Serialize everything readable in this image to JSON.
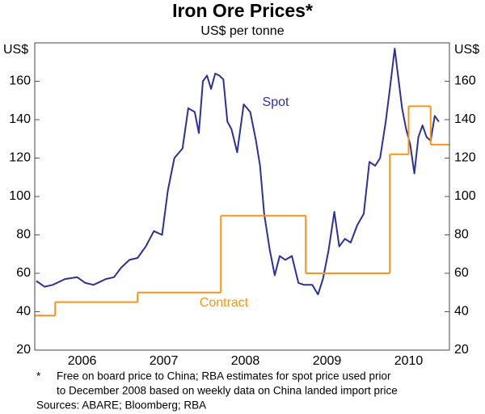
{
  "chart_data": {
    "type": "line",
    "title": "Iron Ore Prices*",
    "subtitle": "US$ per tonne",
    "y_label": "US$",
    "y2_label": "US$",
    "xlim": [
      2005.92,
      2011.0
    ],
    "xticks": [
      {
        "value": 2006.5,
        "label": "2006"
      },
      {
        "value": 2007.5,
        "label": "2007"
      },
      {
        "value": 2008.5,
        "label": "2008"
      },
      {
        "value": 2009.5,
        "label": "2009"
      },
      {
        "value": 2010.5,
        "label": "2010"
      }
    ],
    "ylim": [
      20,
      180
    ],
    "yticks": [
      20,
      40,
      60,
      80,
      100,
      120,
      140,
      160
    ],
    "y2lim": [
      20,
      180
    ],
    "y2ticks": [
      20,
      40,
      60,
      80,
      100,
      120,
      140,
      160
    ],
    "series": [
      {
        "name": "Spot",
        "color": "#2e3192",
        "x": [
          2005.94,
          2006.04,
          2006.14,
          2006.29,
          2006.44,
          2006.54,
          2006.64,
          2006.79,
          2006.89,
          2006.98,
          2007.08,
          2007.18,
          2007.28,
          2007.38,
          2007.48,
          2007.55,
          2007.63,
          2007.73,
          2007.8,
          2007.88,
          2007.93,
          2007.98,
          2008.03,
          2008.08,
          2008.13,
          2008.18,
          2008.23,
          2008.28,
          2008.33,
          2008.4,
          2008.48,
          2008.56,
          2008.63,
          2008.68,
          2008.73,
          2008.8,
          2008.86,
          2008.92,
          2008.99,
          2009.07,
          2009.15,
          2009.22,
          2009.32,
          2009.39,
          2009.45,
          2009.52,
          2009.59,
          2009.65,
          2009.72,
          2009.79,
          2009.87,
          2009.95,
          2010.02,
          2010.09,
          2010.15,
          2010.22,
          2010.27,
          2010.33,
          2010.37,
          2010.42,
          2010.47,
          2010.52,
          2010.57,
          2010.62,
          2010.67,
          2010.72,
          2010.77,
          2010.82,
          2010.87
        ],
        "values": [
          56,
          53,
          54,
          57,
          58,
          55,
          54,
          57,
          58,
          63,
          67,
          68,
          74,
          82,
          80,
          103,
          120,
          125,
          146,
          144,
          133,
          160,
          163,
          156,
          164,
          163,
          161,
          139,
          135,
          123,
          148,
          144,
          129,
          116,
          91,
          72,
          59,
          69,
          67,
          69,
          55,
          54,
          54,
          49,
          57,
          72,
          92,
          74,
          78,
          76,
          85,
          91,
          118,
          116,
          120,
          139,
          156,
          177,
          163,
          146,
          135,
          127,
          112,
          131,
          137,
          131,
          129,
          142,
          139
        ]
      },
      {
        "name": "Contract",
        "color": "#f7941d",
        "step": true,
        "x": [
          2005.92,
          2006.17,
          2007.18,
          2008.2,
          2009.24,
          2010.27,
          2010.5,
          2010.77
        ],
        "values": [
          38,
          45,
          50,
          90,
          60,
          122,
          147,
          127
        ]
      }
    ],
    "notes": [
      "*",
      "Free on board price to China; RBA estimates for spot price used prior",
      "to December 2008 based on weekly data on China landed import price",
      "Sources: ABARE; Bloomberg; RBA"
    ]
  }
}
